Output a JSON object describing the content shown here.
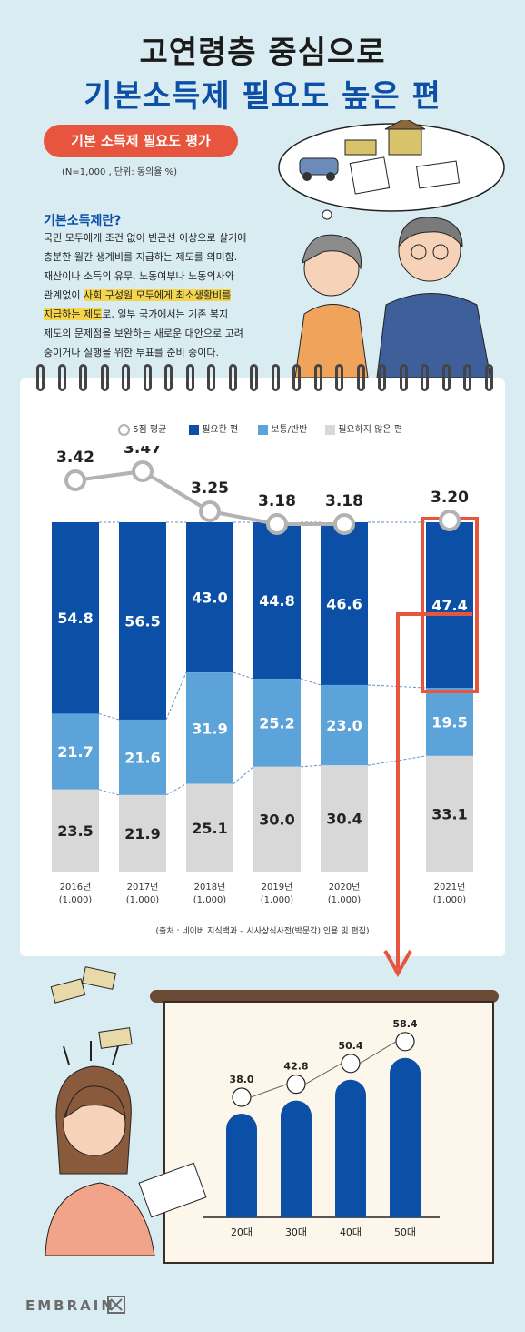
{
  "header": {
    "title_line1": "고연령층 중심으로",
    "title_line2": "기본소득제 필요도 높은 편",
    "tag": "기본 소득제 필요도 평가",
    "note": "(N=1,000 , 단위: 동의율 %)"
  },
  "definition": {
    "title": "기본소득제란?",
    "line1": "국민 모두에게 조건 없이 빈곤선 이상으로 살기에",
    "line2": "충분한 월간 생계비를 지급하는 제도를 의미함.",
    "line3": "재산이나 소득의 유무, 노동여부나 노동의사와",
    "line4_a": "관계없이 ",
    "line4_b": "사회 구성원 모두에게 최소생활비를",
    "line5_a": "지급하는 제도",
    "line5_b": "로, 일부 국가에서는 기존 복지",
    "line6": "제도의 문제점을 보완하는 새로운 대안으로 고려",
    "line7": "중이거나 실행을 위한 투표를 준비 중이다."
  },
  "legend": {
    "avg": "5점 평균",
    "need": "필요한 편",
    "neutral": "보통/반반",
    "noneed": "필요하지 않은 편"
  },
  "colors": {
    "need": "#0b4fa6",
    "neutral": "#5ca3d9",
    "noneed": "#d8d8d8",
    "accent": "#e8553f",
    "avg_line": "#b3b3b3"
  },
  "chart_data": [
    {
      "type": "bar",
      "stacked": true,
      "categories": [
        "2016년",
        "2017년",
        "2018년",
        "2019년",
        "2020년",
        "2021년"
      ],
      "category_sub": [
        "(1,000)",
        "(1,000)",
        "(1,000)",
        "(1,000)",
        "(1,000)",
        "(1,000)"
      ],
      "series": [
        {
          "name": "필요한 편",
          "values": [
            54.8,
            56.5,
            43.0,
            44.8,
            46.6,
            47.4
          ]
        },
        {
          "name": "보통/반반",
          "values": [
            21.7,
            21.6,
            31.9,
            25.2,
            23.0,
            19.5
          ]
        },
        {
          "name": "필요하지 않은 편",
          "values": [
            23.5,
            21.9,
            25.1,
            30.0,
            30.4,
            33.1
          ]
        }
      ],
      "avg_series": {
        "name": "5점 평균",
        "values": [
          3.42,
          3.47,
          3.25,
          3.18,
          3.18,
          3.2
        ]
      },
      "value_labels": {
        "need": [
          "54.8",
          "56.5",
          "43.0",
          "44.8",
          "46.6",
          "47.4"
        ],
        "neutral": [
          "21.7",
          "21.6",
          "31.9",
          "25.2",
          "23.0",
          "19.5"
        ],
        "noneed": [
          "23.5",
          "21.9",
          "25.1",
          "30.0",
          "30.4",
          "33.1"
        ],
        "avg": [
          "3.42",
          "3.47",
          "3.25",
          "3.18",
          "3.18",
          "3.20"
        ]
      },
      "highlight": "2021년",
      "ylim": [
        0,
        100
      ]
    },
    {
      "type": "bar",
      "categories": [
        "20대",
        "30대",
        "40대",
        "50대"
      ],
      "values": [
        38.0,
        42.8,
        50.4,
        58.4
      ],
      "value_labels": [
        "38.0",
        "42.8",
        "50.4",
        "58.4"
      ]
    }
  ],
  "source": "(출처 : 네이버 지식백과 – 시사상식사전(박문각) 인용 및 편집)",
  "brand": "EMBRAIN"
}
